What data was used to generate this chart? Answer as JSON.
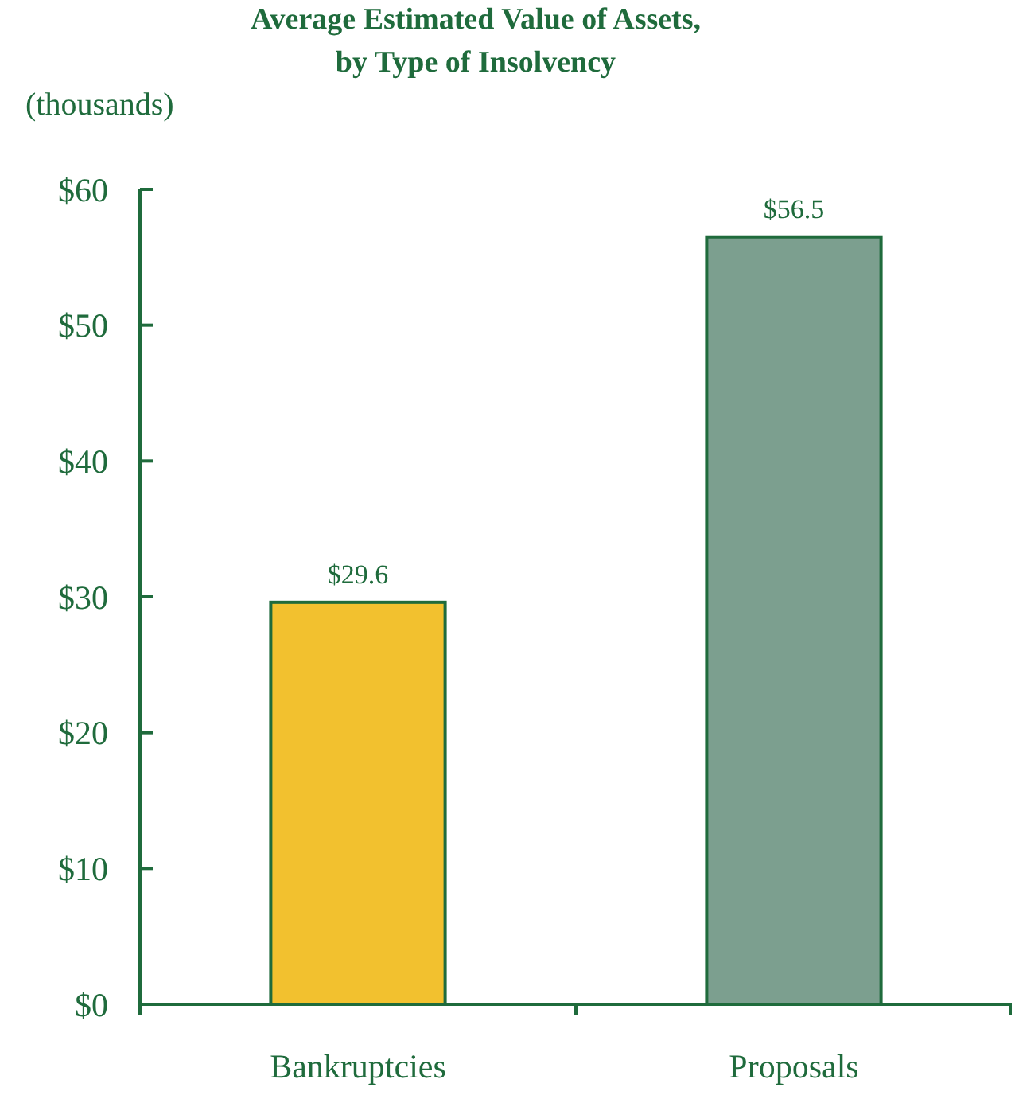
{
  "chart_data": {
    "type": "bar",
    "title": "Average Estimated Value of Assets,\nby Type of Insolvency",
    "ylabel": "(thousands)",
    "categories": [
      "Bankruptcies",
      "Proposals"
    ],
    "values": [
      29.6,
      56.5
    ],
    "colors": [
      "#f2c12f",
      "#7c9f8f"
    ],
    "value_labels": [
      "$29.6",
      "$56.5"
    ],
    "ylim": [
      0,
      60
    ],
    "yticks": [
      {
        "value": 0,
        "label": "$0"
      },
      {
        "value": 10,
        "label": "$10"
      },
      {
        "value": 20,
        "label": "$20"
      },
      {
        "value": 30,
        "label": "$30"
      },
      {
        "value": 40,
        "label": "$40"
      },
      {
        "value": 50,
        "label": "$50"
      },
      {
        "value": 60,
        "label": "$60"
      }
    ],
    "grid": false
  }
}
